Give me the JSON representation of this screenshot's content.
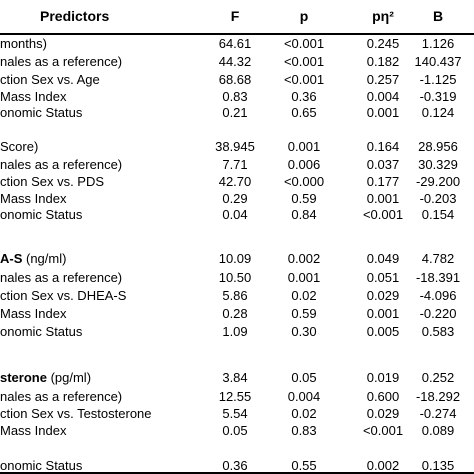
{
  "header": {
    "predictors": "Predictors",
    "f": "F",
    "p": "p",
    "pn2": "pη²",
    "b": "B"
  },
  "rows": [
    {
      "pre": "",
      "label": "months)",
      "f": "64.61",
      "p": "<0.001",
      "pn2": "0.245",
      "b": "1.126"
    },
    {
      "pre": "",
      "label": "nales as a reference)",
      "f": "44.32",
      "p": "<0.001",
      "pn2": "0.182",
      "b": "140.437"
    },
    {
      "pre": "",
      "label": "ction Sex vs. Age",
      "f": "68.68",
      "p": "<0.001",
      "pn2": "0.257",
      "b": "-1.125"
    },
    {
      "pre": "",
      "label": "Mass Index",
      "f": "0.83",
      "p": "0.36",
      "pn2": "0.004",
      "b": "-0.319"
    },
    {
      "pre": "",
      "label": "onomic Status",
      "f": "0.21",
      "p": "0.65",
      "pn2": "0.001",
      "b": "0.124"
    },
    {
      "pre": "",
      "label": "Score)",
      "f": "38.945",
      "p": "0.001",
      "pn2": "0.164",
      "b": "28.956"
    },
    {
      "pre": "",
      "label": "nales as a reference)",
      "f": "7.71",
      "p": "0.006",
      "pn2": "0.037",
      "b": "30.329"
    },
    {
      "pre": "",
      "label": "ction Sex vs. PDS",
      "f": "42.70",
      "p": "<0.000",
      "pn2": "0.177",
      "b": "-29.200"
    },
    {
      "pre": "",
      "label": "Mass Index",
      "f": "0.29",
      "p": "0.59",
      "pn2": "0.001",
      "b": "-0.203"
    },
    {
      "pre": "",
      "label": "onomic Status",
      "f": "0.04",
      "p": "0.84",
      "pn2": "<0.001",
      "b": "0.154"
    },
    {
      "pre": "A-S",
      "label": " (ng/ml)",
      "f": "10.09",
      "p": "0.002",
      "pn2": "0.049",
      "b": "4.782"
    },
    {
      "pre": "",
      "label": "nales as a reference)",
      "f": "10.50",
      "p": "0.001",
      "pn2": "0.051",
      "b": "-18.391"
    },
    {
      "pre": "",
      "label": "ction Sex vs. DHEA-S",
      "f": "5.86",
      "p": "0.02",
      "pn2": "0.029",
      "b": "-4.096"
    },
    {
      "pre": "",
      "label": "Mass Index",
      "f": "0.28",
      "p": "0.59",
      "pn2": "0.001",
      "b": "-0.220"
    },
    {
      "pre": "",
      "label": "onomic Status",
      "f": "1.09",
      "p": "0.30",
      "pn2": "0.005",
      "b": "0.583"
    },
    {
      "pre": "sterone",
      "label": " (pg/ml)",
      "f": "3.84",
      "p": "0.05",
      "pn2": "0.019",
      "b": "0.252"
    },
    {
      "pre": "",
      "label": "nales as a reference)",
      "f": "12.55",
      "p": "0.004",
      "pn2": "0.600",
      "b": "-18.292"
    },
    {
      "pre": "",
      "label": "ction Sex vs. Testosterone",
      "f": "5.54",
      "p": "0.02",
      "pn2": "0.029",
      "b": "-0.274"
    },
    {
      "pre": "",
      "label": "Mass Index",
      "f": "0.05",
      "p": "0.83",
      "pn2": "<0.001",
      "b": "0.089"
    },
    {
      "pre": "",
      "label": "onomic Status",
      "f": "0.36",
      "p": "0.55",
      "pn2": "0.002",
      "b": "0.135"
    }
  ]
}
